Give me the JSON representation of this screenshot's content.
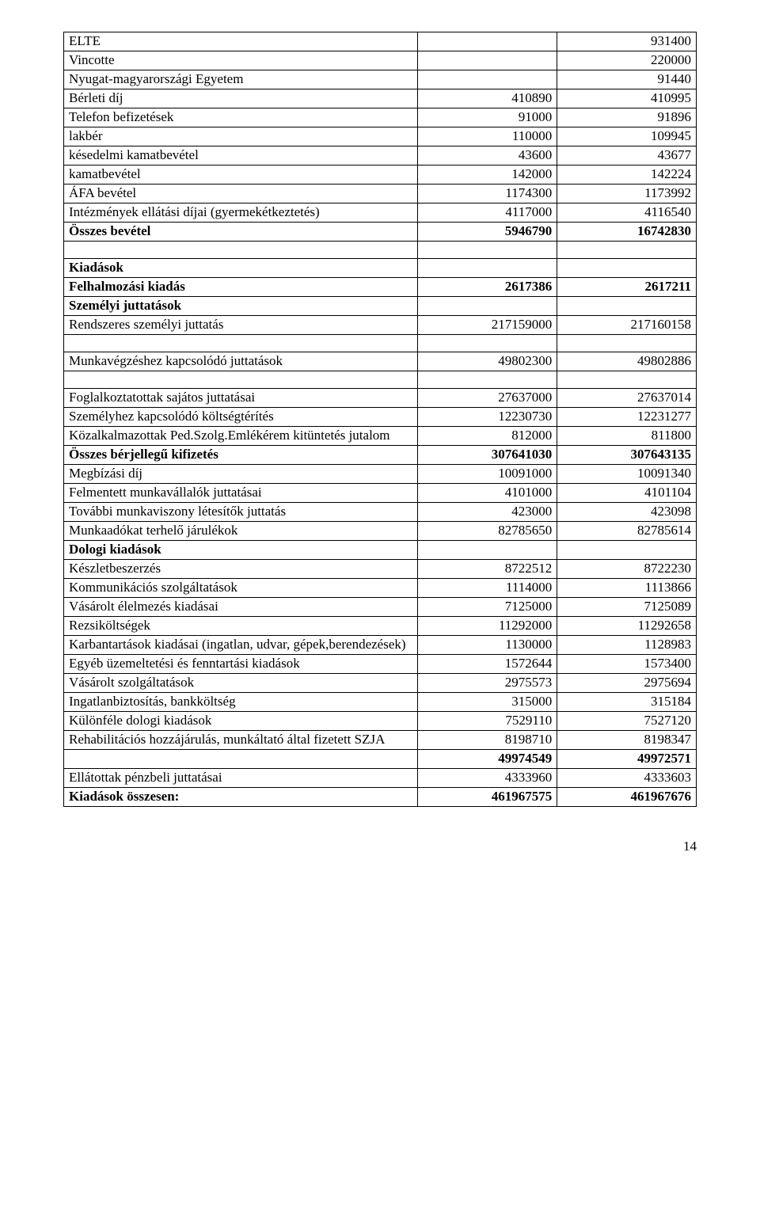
{
  "rows": [
    {
      "label": "ELTE",
      "c2": "",
      "c3": "931400",
      "bold": false
    },
    {
      "label": "Vincotte",
      "c2": "",
      "c3": "220000",
      "bold": false
    },
    {
      "label": "Nyugat-magyarországi Egyetem",
      "c2": "",
      "c3": "91440",
      "bold": false
    },
    {
      "label": "Bérleti díj",
      "c2": "410890",
      "c3": "410995",
      "bold": false
    },
    {
      "label": "Telefon befizetések",
      "c2": "91000",
      "c3": "91896",
      "bold": false
    },
    {
      "label": "lakbér",
      "c2": "110000",
      "c3": "109945",
      "bold": false
    },
    {
      "label": "késedelmi kamatbevétel",
      "c2": "43600",
      "c3": "43677",
      "bold": false
    },
    {
      "label": " kamatbevétel",
      "c2": "142000",
      "c3": "142224",
      "bold": false
    },
    {
      "label": "ÁFA bevétel",
      "c2": "1174300",
      "c3": "1173992",
      "bold": false
    },
    {
      "label": "Intézmények ellátási díjai (gyermekétkeztetés)",
      "c2": "4117000",
      "c3": "4116540",
      "bold": false
    },
    {
      "label": "Összes bevétel",
      "c2": "5946790",
      "c3": "16742830",
      "bold": true
    },
    {
      "spacer": true
    },
    {
      "label": "Kiadások",
      "c2": "",
      "c3": "",
      "bold": true
    },
    {
      "label": "Felhalmozási kiadás",
      "c2": "2617386",
      "c3": "2617211",
      "bold": true
    },
    {
      "label": "Személyi juttatások",
      "c2": "",
      "c3": "",
      "bold": true
    },
    {
      "label": "Rendszeres személyi juttatás",
      "c2": "217159000",
      "c3": "217160158",
      "bold": false
    },
    {
      "spacer": true
    },
    {
      "label": "Munkavégzéshez kapcsolódó juttatások",
      "c2": "49802300",
      "c3": "49802886",
      "bold": false
    },
    {
      "spacer": true
    },
    {
      "label": "Foglalkoztatottak sajátos juttatásai",
      "c2": "27637000",
      "c3": "27637014",
      "bold": false
    },
    {
      "label": "Személyhez kapcsolódó költségtérítés",
      "c2": "12230730",
      "c3": "12231277",
      "bold": false
    },
    {
      "label": "Közalkalmazottak Ped.Szolg.Emlékérem kitüntetés jutalom",
      "c2": "812000",
      "c3": "811800",
      "bold": false
    },
    {
      "label": "Összes bérjellegű kifizetés",
      "c2": "307641030",
      "c3": "307643135",
      "bold": true
    },
    {
      "label": "Megbízási díj",
      "c2": "10091000",
      "c3": "10091340",
      "bold": false
    },
    {
      "label": " Felmentett munkavállalók juttatásai",
      "c2": "4101000",
      "c3": "4101104",
      "bold": false
    },
    {
      "label": "További munkaviszony létesítők juttatás",
      "c2": "423000",
      "c3": "423098",
      "bold": false
    },
    {
      "label": "Munkaadókat terhelő járulékok",
      "c2": "82785650",
      "c3": "82785614",
      "bold": false
    },
    {
      "label": "Dologi kiadások",
      "c2": "",
      "c3": "",
      "bold": true
    },
    {
      "label": "Készletbeszerzés",
      "c2": "8722512",
      "c3": "8722230",
      "bold": false
    },
    {
      "label": "Kommunikációs szolgáltatások",
      "c2": "1114000",
      "c3": "1113866",
      "bold": false
    },
    {
      "label": "Vásárolt élelmezés kiadásai",
      "c2": "7125000",
      "c3": "7125089",
      "bold": false
    },
    {
      "label": "Rezsiköltségek",
      "c2": "11292000",
      "c3": "11292658",
      "bold": false
    },
    {
      "label": "Karbantartások kiadásai (ingatlan, udvar, gépek,berendezések)",
      "c2": "1130000",
      "c3": "1128983",
      "bold": false
    },
    {
      "label": "Egyéb üzemeltetési és fenntartási kiadások",
      "c2": "1572644",
      "c3": "1573400",
      "bold": false
    },
    {
      "label": "Vásárolt szolgáltatások",
      "c2": "2975573",
      "c3": "2975694",
      "bold": false
    },
    {
      "label": "Ingatlanbiztosítás, bankköltség",
      "c2": "315000",
      "c3": "315184",
      "bold": false
    },
    {
      "label": "Különféle dologi kiadások",
      "c2": "7529110",
      "c3": "7527120",
      "bold": false
    },
    {
      "label": "Rehabilitációs hozzájárulás, munkáltató által fizetett SZJA",
      "c2": "8198710",
      "c3": "8198347",
      "bold": false
    },
    {
      "label": "",
      "c2": "49974549",
      "c3": "49972571",
      "bold": true
    },
    {
      "label": "Ellátottak pénzbeli juttatásai",
      "c2": "4333960",
      "c3": "4333603",
      "bold": false
    },
    {
      "label": "Kiadások összesen:",
      "c2": "461967575",
      "c3": "461967676",
      "bold": true
    }
  ],
  "page_number": "14"
}
